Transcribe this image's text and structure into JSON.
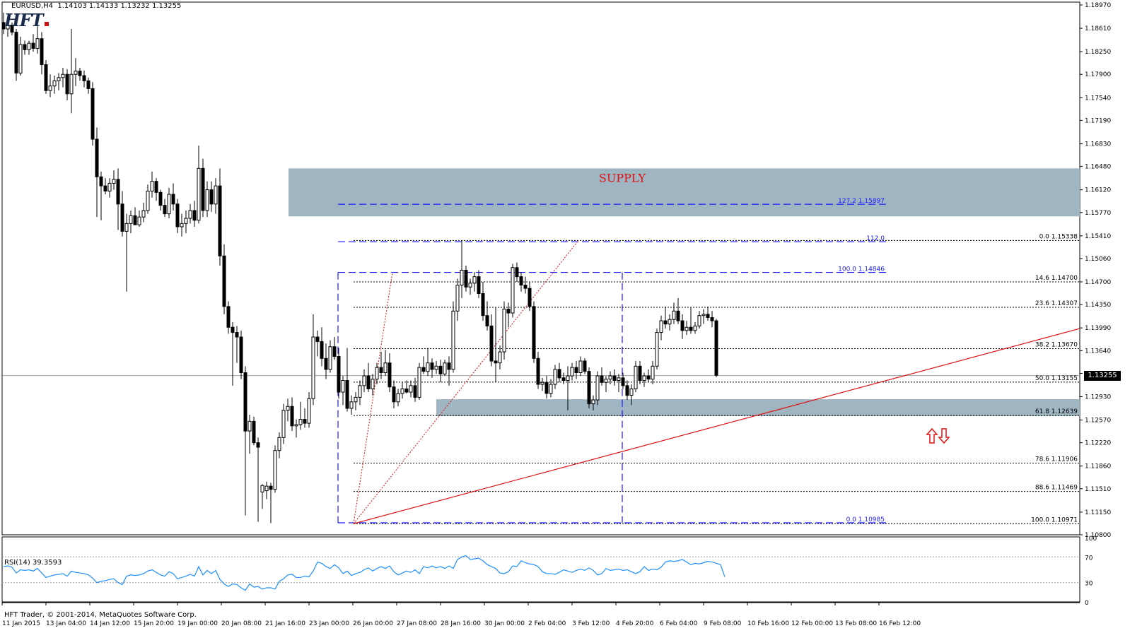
{
  "chart_header": {
    "symbol": "EURUSD,H4",
    "ohlc": "1.14103 1.14133 1.13232 1.13255"
  },
  "logo_text": "HFT",
  "zones": {
    "supply_label": "SUPPLY",
    "supply_price_range": [
      1.1571,
      1.1645
    ],
    "demand_price_range": [
      1.1263,
      1.1289
    ],
    "zone_color": "#9fb5c2"
  },
  "price_axis": {
    "min": 1.108,
    "max": 1.1897,
    "ticks": [
      "1.18970",
      "1.18610",
      "1.18250",
      "1.17900",
      "1.17540",
      "1.17190",
      "1.16830",
      "1.16480",
      "1.16120",
      "1.15770",
      "1.15410",
      "1.15060",
      "1.14700",
      "1.14350",
      "1.13990",
      "1.13640",
      "1.13290",
      "1.12930",
      "1.12570",
      "1.12220",
      "1.11860",
      "1.11510",
      "1.11150",
      "1.10800"
    ],
    "current_price": "1.13255"
  },
  "fib_right": [
    {
      "label": "0.0",
      "price": "1.15338"
    },
    {
      "label": "14.6",
      "price": "1.14700"
    },
    {
      "label": "23.6",
      "price": "1.14307"
    },
    {
      "label": "38.2",
      "price": "1.13670"
    },
    {
      "label": "50.0",
      "price": "1.13155"
    },
    {
      "label": "61.8",
      "price": "1.12639"
    },
    {
      "label": "78.6",
      "price": "1.11906"
    },
    {
      "label": "88.6",
      "price": "1.11469"
    },
    {
      "label": "100.0",
      "price": "1.10971"
    }
  ],
  "fib_blue": [
    {
      "label": "127.2",
      "price": "1.15897"
    },
    {
      "label": "112.0",
      "price": ""
    },
    {
      "label": "100.0",
      "price": "1.14846"
    },
    {
      "label": "0.0",
      "price": "1.10985"
    }
  ],
  "rsi": {
    "label": "RSI(14) 39.3593",
    "levels": [
      "100",
      "70",
      "30",
      "0"
    ],
    "series_color": "#1e90ff"
  },
  "copyright": "HFT Trader, © 2001-2014, MetaQuotes Software Corp.",
  "time_axis": [
    "11 Jan 2015",
    "13 Jan 04:00",
    "14 Jan 12:00",
    "15 Jan 20:00",
    "19 Jan 00:00",
    "20 Jan 08:00",
    "21 Jan 16:00",
    "23 Jan 00:00",
    "26 Jan 00:00",
    "27 Jan 08:00",
    "28 Jan 16:00",
    "30 Jan 00:00",
    "2 Feb 04:00",
    "3 Feb 12:00",
    "4 Feb 20:00",
    "6 Feb 04:00",
    "9 Feb 08:00",
    "10 Feb 16:00",
    "12 Feb 00:00",
    "13 Feb 08:00",
    "16 Feb 12:00"
  ],
  "candles": [
    [
      1.187,
      1.1885,
      1.1852,
      1.186
    ],
    [
      1.186,
      1.1875,
      1.1848,
      1.1866
    ],
    [
      1.1866,
      1.187,
      1.185,
      1.1855
    ],
    [
      1.1855,
      1.186,
      1.178,
      1.1792
    ],
    [
      1.1792,
      1.1848,
      1.1788,
      1.1836
    ],
    [
      1.1836,
      1.1842,
      1.182,
      1.1828
    ],
    [
      1.1828,
      1.1842,
      1.182,
      1.1838
    ],
    [
      1.1838,
      1.1852,
      1.1825,
      1.183
    ],
    [
      1.183,
      1.1868,
      1.1822,
      1.1845
    ],
    [
      1.1845,
      1.1855,
      1.179,
      1.1805
    ],
    [
      1.1805,
      1.1812,
      1.176,
      1.1765
    ],
    [
      1.1765,
      1.179,
      1.1755,
      1.1772
    ],
    [
      1.1772,
      1.1788,
      1.176,
      1.178
    ],
    [
      1.178,
      1.1792,
      1.1765,
      1.1785
    ],
    [
      1.1785,
      1.18,
      1.177,
      1.179
    ],
    [
      1.179,
      1.1798,
      1.175,
      1.176
    ],
    [
      1.176,
      1.186,
      1.173,
      1.179
    ],
    [
      1.179,
      1.1815,
      1.1772,
      1.1795
    ],
    [
      1.1795,
      1.18,
      1.178,
      1.1788
    ],
    [
      1.1788,
      1.1796,
      1.177,
      1.178
    ],
    [
      1.178,
      1.1785,
      1.176,
      1.1768
    ],
    [
      1.1768,
      1.1778,
      1.168,
      1.169
    ],
    [
      1.169,
      1.1708,
      1.157,
      1.1632
    ],
    [
      1.1632,
      1.164,
      1.1565,
      1.1618
    ],
    [
      1.1618,
      1.163,
      1.1605,
      1.161
    ],
    [
      1.161,
      1.163,
      1.16,
      1.1622
    ],
    [
      1.1622,
      1.1642,
      1.1612,
      1.1628
    ],
    [
      1.1628,
      1.1645,
      1.155,
      1.159
    ],
    [
      1.159,
      1.161,
      1.154,
      1.1548
    ],
    [
      1.1548,
      1.1575,
      1.1455,
      1.156
    ],
    [
      1.156,
      1.158,
      1.1545,
      1.1572
    ],
    [
      1.1572,
      1.1585,
      1.156,
      1.1558
    ],
    [
      1.1558,
      1.158,
      1.1555,
      1.157
    ],
    [
      1.157,
      1.1592,
      1.1562,
      1.158
    ],
    [
      1.158,
      1.162,
      1.1575,
      1.161
    ],
    [
      1.161,
      1.164,
      1.16,
      1.1625
    ],
    [
      1.1625,
      1.163,
      1.1595,
      1.1608
    ],
    [
      1.1608,
      1.1612,
      1.158,
      1.1588
    ],
    [
      1.1588,
      1.1598,
      1.157,
      1.1575
    ],
    [
      1.1575,
      1.1615,
      1.1568,
      1.1605
    ],
    [
      1.1605,
      1.1622,
      1.158,
      1.159
    ],
    [
      1.159,
      1.1598,
      1.1545,
      1.1555
    ],
    [
      1.1555,
      1.1575,
      1.154,
      1.156
    ],
    [
      1.156,
      1.158,
      1.1545,
      1.1568
    ],
    [
      1.1568,
      1.159,
      1.156,
      1.158
    ],
    [
      1.158,
      1.1595,
      1.1555,
      1.1565
    ],
    [
      1.1565,
      1.168,
      1.156,
      1.1645
    ],
    [
      1.1645,
      1.166,
      1.157,
      1.158
    ],
    [
      1.158,
      1.1625,
      1.157,
      1.1612
    ],
    [
      1.1612,
      1.1625,
      1.1578,
      1.159
    ],
    [
      1.159,
      1.163,
      1.1575,
      1.1618
    ],
    [
      1.1618,
      1.1645,
      1.1495,
      1.151
    ],
    [
      1.151,
      1.1528,
      1.142,
      1.1432
    ],
    [
      1.1432,
      1.144,
      1.139,
      1.14
    ],
    [
      1.14,
      1.1408,
      1.131,
      1.1392
    ],
    [
      1.1392,
      1.1402,
      1.1345,
      1.1385
    ],
    [
      1.1385,
      1.1395,
      1.132,
      1.133
    ],
    [
      1.133,
      1.134,
      1.111,
      1.124
    ],
    [
      1.124,
      1.1265,
      1.1205,
      1.1255
    ],
    [
      1.1255,
      1.1262,
      1.1218,
      1.1222
    ],
    [
      1.1222,
      1.123,
      1.11,
      1.1215
    ],
    [
      1.1146,
      1.1158,
      1.112,
      1.1156
    ],
    [
      1.1148,
      1.1162,
      1.1135,
      1.1155
    ],
    [
      1.1155,
      1.116,
      1.1098,
      1.115
    ],
    [
      1.115,
      1.1218,
      1.1145,
      1.121
    ],
    [
      1.121,
      1.1238,
      1.1198,
      1.123
    ],
    [
      1.123,
      1.1282,
      1.122,
      1.1272
    ],
    [
      1.1272,
      1.129,
      1.1255,
      1.1278
    ],
    [
      1.1278,
      1.1292,
      1.124,
      1.1248
    ],
    [
      1.1248,
      1.1258,
      1.123,
      1.125
    ],
    [
      1.125,
      1.1285,
      1.1242,
      1.1258
    ],
    [
      1.1258,
      1.1275,
      1.1245,
      1.1252
    ],
    [
      1.1252,
      1.13,
      1.1245,
      1.129
    ],
    [
      1.129,
      1.142,
      1.128,
      1.1385
    ],
    [
      1.1385,
      1.1395,
      1.1355,
      1.1378
    ],
    [
      1.1378,
      1.14,
      1.134,
      1.1352
    ],
    [
      1.1352,
      1.1375,
      1.132,
      1.1335
    ],
    [
      1.1335,
      1.138,
      1.133,
      1.137
    ],
    [
      1.137,
      1.1385,
      1.135,
      1.1355
    ],
    [
      1.1355,
      1.1368,
      1.129,
      1.13
    ],
    [
      1.13,
      1.1325,
      1.128,
      1.1318
    ],
    [
      1.1318,
      1.1368,
      1.127,
      1.1275
    ],
    [
      1.1275,
      1.1295,
      1.1265,
      1.1285
    ],
    [
      1.1285,
      1.13,
      1.1272,
      1.1292
    ],
    [
      1.1292,
      1.1318,
      1.128,
      1.131
    ],
    [
      1.131,
      1.1335,
      1.13,
      1.1325
    ],
    [
      1.1325,
      1.1345,
      1.13,
      1.1305
    ],
    [
      1.1305,
      1.1328,
      1.1295,
      1.132
    ],
    [
      1.132,
      1.1345,
      1.1312,
      1.1338
    ],
    [
      1.1338,
      1.1362,
      1.132,
      1.133
    ],
    [
      1.133,
      1.1365,
      1.1325,
      1.1345
    ],
    [
      1.1345,
      1.136,
      1.13,
      1.1308
    ],
    [
      1.1308,
      1.1318,
      1.1275,
      1.1285
    ],
    [
      1.1285,
      1.1305,
      1.1278,
      1.1298
    ],
    [
      1.1298,
      1.1315,
      1.129,
      1.1305
    ],
    [
      1.1305,
      1.1318,
      1.1298,
      1.13
    ],
    [
      1.13,
      1.1318,
      1.1292,
      1.131
    ],
    [
      1.131,
      1.1322,
      1.1285,
      1.1292
    ],
    [
      1.1292,
      1.1345,
      1.1288,
      1.1338
    ],
    [
      1.1338,
      1.1355,
      1.1328,
      1.1332
    ],
    [
      1.1332,
      1.1368,
      1.1325,
      1.1345
    ],
    [
      1.1345,
      1.1352,
      1.1322,
      1.1335
    ],
    [
      1.1335,
      1.1348,
      1.1328,
      1.134
    ],
    [
      1.134,
      1.135,
      1.1315,
      1.1328
    ],
    [
      1.1328,
      1.135,
      1.1325,
      1.1345
    ],
    [
      1.1345,
      1.1355,
      1.131,
      1.1335
    ],
    [
      1.1335,
      1.144,
      1.133,
      1.1425
    ],
    [
      1.1425,
      1.1475,
      1.141,
      1.1465
    ],
    [
      1.1465,
      1.1534,
      1.1445,
      1.1488
    ],
    [
      1.1488,
      1.1495,
      1.1455,
      1.1462
    ],
    [
      1.1462,
      1.1475,
      1.145,
      1.1468
    ],
    [
      1.1468,
      1.1485,
      1.1455,
      1.1478
    ],
    [
      1.1478,
      1.1488,
      1.1445,
      1.1452
    ],
    [
      1.1452,
      1.147,
      1.141,
      1.1418
    ],
    [
      1.1418,
      1.144,
      1.1395,
      1.1402
    ],
    [
      1.1402,
      1.142,
      1.134,
      1.1348
    ],
    [
      1.1348,
      1.143,
      1.1315,
      1.1345
    ],
    [
      1.1345,
      1.1372,
      1.1335,
      1.1362
    ],
    [
      1.1362,
      1.144,
      1.135,
      1.1428
    ],
    [
      1.1428,
      1.1438,
      1.14,
      1.1422
    ],
    [
      1.1422,
      1.1498,
      1.1415,
      1.1492
    ],
    [
      1.1492,
      1.15,
      1.147,
      1.1478
    ],
    [
      1.1478,
      1.1485,
      1.1455,
      1.1465
    ],
    [
      1.1465,
      1.1478,
      1.1452,
      1.146
    ],
    [
      1.146,
      1.147,
      1.1425,
      1.1432
    ],
    [
      1.1432,
      1.144,
      1.1345,
      1.1352
    ],
    [
      1.1352,
      1.1362,
      1.1305,
      1.1312
    ],
    [
      1.1312,
      1.1322,
      1.1302,
      1.1315
    ],
    [
      1.1315,
      1.1325,
      1.129,
      1.1298
    ],
    [
      1.1298,
      1.132,
      1.1292,
      1.1312
    ],
    [
      1.1312,
      1.1342,
      1.1305,
      1.1335
    ],
    [
      1.1335,
      1.1345,
      1.1315,
      1.1322
    ],
    [
      1.1322,
      1.133,
      1.1312,
      1.1318
    ],
    [
      1.1318,
      1.134,
      1.1272,
      1.1325
    ],
    [
      1.1325,
      1.1345,
      1.1318,
      1.1338
    ],
    [
      1.1338,
      1.1348,
      1.132,
      1.133
    ],
    [
      1.133,
      1.1355,
      1.1325,
      1.1348
    ],
    [
      1.1348,
      1.1352,
      1.1328,
      1.1332
    ],
    [
      1.1332,
      1.1338,
      1.1275,
      1.1282
    ],
    [
      1.1282,
      1.1295,
      1.1272,
      1.1288
    ],
    [
      1.1288,
      1.1332,
      1.128,
      1.1325
    ],
    [
      1.1325,
      1.1338,
      1.131,
      1.1315
    ],
    [
      1.1315,
      1.1325,
      1.13,
      1.132
    ],
    [
      1.132,
      1.1332,
      1.1312,
      1.1325
    ],
    [
      1.1325,
      1.1335,
      1.131,
      1.1318
    ],
    [
      1.1318,
      1.1328,
      1.13,
      1.1322
    ],
    [
      1.1322,
      1.133,
      1.1305,
      1.131
    ],
    [
      1.131,
      1.1318,
      1.1288,
      1.1295
    ],
    [
      1.1295,
      1.1312,
      1.128,
      1.1305
    ],
    [
      1.1305,
      1.1348,
      1.13,
      1.134
    ],
    [
      1.134,
      1.1348,
      1.1312,
      1.1318
    ],
    [
      1.1318,
      1.133,
      1.1308,
      1.1325
    ],
    [
      1.1325,
      1.1335,
      1.1315,
      1.132
    ],
    [
      1.132,
      1.1348,
      1.1312,
      1.134
    ],
    [
      1.134,
      1.1398,
      1.1335,
      1.1392
    ],
    [
      1.1392,
      1.1418,
      1.138,
      1.141
    ],
    [
      1.141,
      1.1432,
      1.1398,
      1.1405
    ],
    [
      1.1405,
      1.142,
      1.1395,
      1.1412
    ],
    [
      1.1412,
      1.1438,
      1.1405,
      1.1425
    ],
    [
      1.1425,
      1.1445,
      1.1405,
      1.141
    ],
    [
      1.141,
      1.142,
      1.1382,
      1.1395
    ],
    [
      1.1395,
      1.141,
      1.1388,
      1.14
    ],
    [
      1.14,
      1.143,
      1.139,
      1.1395
    ],
    [
      1.1395,
      1.1408,
      1.139,
      1.1402
    ],
    [
      1.1402,
      1.1425,
      1.1398,
      1.1418
    ],
    [
      1.1418,
      1.1428,
      1.1405,
      1.142
    ],
    [
      1.142,
      1.1432,
      1.141,
      1.1415
    ],
    [
      1.1415,
      1.1425,
      1.14,
      1.141
    ],
    [
      1.141,
      1.1413,
      1.1323,
      1.1326
    ]
  ],
  "rsi_values": [
    55,
    56,
    54,
    45,
    50,
    49,
    50,
    48,
    52,
    45,
    38,
    40,
    42,
    43,
    44,
    40,
    48,
    46,
    45,
    44,
    42,
    37,
    30,
    32,
    33,
    35,
    36,
    30,
    27,
    40,
    42,
    41,
    42,
    44,
    48,
    50,
    46,
    42,
    40,
    47,
    44,
    36,
    38,
    40,
    43,
    40,
    55,
    42,
    49,
    44,
    49,
    35,
    28,
    24,
    28,
    27,
    22,
    18,
    28,
    23,
    24,
    20,
    22,
    22,
    20,
    32,
    36,
    42,
    43,
    38,
    38,
    40,
    39,
    48,
    62,
    60,
    55,
    52,
    58,
    53,
    44,
    48,
    41,
    44,
    46,
    50,
    53,
    48,
    52,
    55,
    52,
    56,
    47,
    42,
    45,
    48,
    46,
    50,
    44,
    55,
    53,
    56,
    53,
    55,
    52,
    56,
    52,
    66,
    70,
    72,
    66,
    67,
    68,
    64,
    58,
    55,
    52,
    45,
    44,
    47,
    56,
    55,
    64,
    61,
    59,
    58,
    55,
    47,
    44,
    44,
    43,
    46,
    50,
    48,
    46,
    49,
    51,
    49,
    53,
    49,
    42,
    44,
    52,
    49,
    50,
    51,
    49,
    50,
    47,
    44,
    47,
    55,
    49,
    51,
    50,
    54,
    62,
    64,
    63,
    64,
    66,
    62,
    58,
    60,
    59,
    61,
    63,
    62,
    60,
    58,
    39
  ]
}
